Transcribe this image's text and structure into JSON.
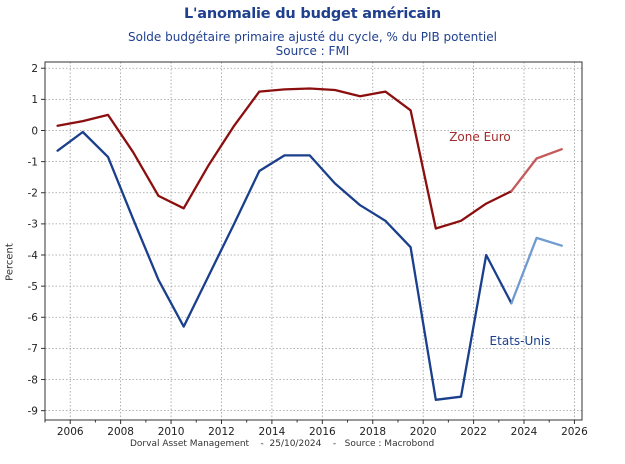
{
  "chart_data": {
    "type": "line",
    "title": "L'anomalie du budget américain",
    "subtitle_lines": [
      "Solde budgétaire primaire ajusté du cycle, % du PIB potentiel",
      "Source : FMI"
    ],
    "ylabel": "Percent",
    "xlabel": "",
    "footer": "Dorval Asset Management    -  25/10/2024    -   Source : Macrobond",
    "xlim": [
      2005.0,
      2026.3
    ],
    "ylim": [
      -9.3,
      2.2
    ],
    "x_ticks": [
      2006,
      2008,
      2010,
      2012,
      2014,
      2016,
      2018,
      2020,
      2022,
      2024,
      2026
    ],
    "y_ticks": [
      2,
      1,
      0,
      -1,
      -2,
      -3,
      -4,
      -5,
      -6,
      -7,
      -8,
      -9
    ],
    "y_tick_labels": [
      "2",
      "1",
      "0",
      "-1",
      "-2",
      "-3",
      "-4",
      "-5",
      "-6",
      "-7",
      "-8",
      "-9"
    ],
    "grid": true,
    "series": [
      {
        "name": "Zone Euro",
        "color": "#8b0f0f",
        "forecast_color": "#c45a5a",
        "x": [
          2005.5,
          2006.5,
          2007.5,
          2008.5,
          2009.5,
          2010.5,
          2011.5,
          2012.5,
          2013.5,
          2014.5,
          2015.5,
          2016.5,
          2017.5,
          2018.5,
          2019.5,
          2020.5,
          2021.5,
          2022.5,
          2023.5,
          2024.5,
          2025.5
        ],
        "y": [
          0.15,
          0.3,
          0.5,
          -0.7,
          -2.1,
          -2.5,
          -1.1,
          0.15,
          1.25,
          1.32,
          1.35,
          1.3,
          1.1,
          1.25,
          0.65,
          -3.15,
          -2.9,
          -2.35,
          -1.95,
          -0.9,
          -0.6
        ],
        "forecast_from": 2023.5
      },
      {
        "name": "Etats-Unis",
        "color": "#1a3f8c",
        "forecast_color": "#6f9bd0",
        "x": [
          2005.5,
          2006.5,
          2007.5,
          2008.5,
          2009.5,
          2010.5,
          2011.5,
          2012.5,
          2013.5,
          2014.5,
          2015.5,
          2016.5,
          2017.5,
          2018.5,
          2019.5,
          2020.5,
          2021.5,
          2022.5,
          2023.5,
          2024.5,
          2025.5
        ],
        "y": [
          -0.65,
          -0.05,
          -0.85,
          -2.85,
          -4.8,
          -6.3,
          -4.65,
          -3.0,
          -1.3,
          -0.8,
          -0.8,
          -1.7,
          -2.4,
          -2.9,
          -3.75,
          -8.65,
          -8.55,
          -4.0,
          -5.55,
          -3.45,
          -3.7
        ],
        "forecast_from": 2023.5
      }
    ],
    "annotations": [
      {
        "text": "Zone Euro",
        "series": "Zone Euro",
        "color": "#a32a2a"
      },
      {
        "text": "Etats-Unis",
        "series": "Etats-Unis",
        "color": "#1a3f8c"
      }
    ]
  }
}
